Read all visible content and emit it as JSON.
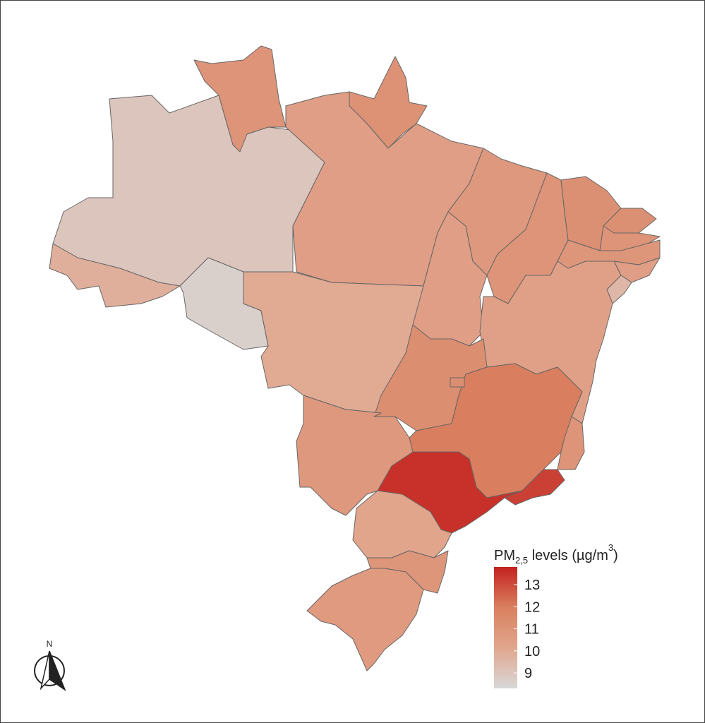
{
  "map": {
    "legend": {
      "title_parts": [
        "PM",
        "2,5",
        " levels (µg/m",
        "3",
        ")"
      ],
      "min": 8.3,
      "max": 13.8,
      "ticks": [
        9,
        10,
        11,
        12,
        13
      ],
      "colors": [
        "#d8d8d8",
        "#e1a68e",
        "#d9805f",
        "#c4211f"
      ]
    },
    "north": "N",
    "regions": [
      {
        "value": 9.0
      },
      {
        "value": 11.0
      },
      {
        "value": 11.1
      },
      {
        "value": 10.5
      },
      {
        "value": 9.8
      },
      {
        "value": 8.6
      },
      {
        "value": 10.0
      },
      {
        "value": 10.5
      },
      {
        "value": 10.8
      },
      {
        "value": 11.0
      },
      {
        "value": 11.2
      },
      {
        "value": 11.2
      },
      {
        "value": 11.0
      },
      {
        "value": 10.9
      },
      {
        "value": 10.5
      },
      {
        "value": 9.5
      },
      {
        "value": 10.4
      },
      {
        "value": 11.3
      },
      {
        "value": 12.0
      },
      {
        "value": 11.3
      },
      {
        "value": 11.0
      },
      {
        "value": 13.2
      },
      {
        "value": 13.5
      },
      {
        "value": 10.8
      },
      {
        "value": 10.2
      },
      {
        "value": 10.9
      },
      {
        "value": 10.7
      }
    ]
  }
}
